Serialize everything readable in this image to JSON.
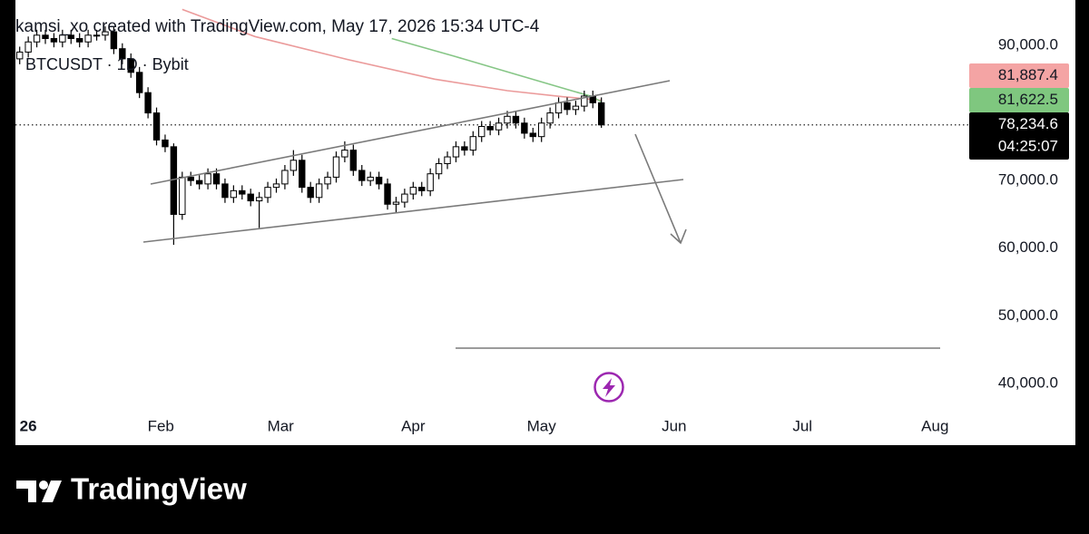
{
  "chart_data": {
    "type": "candlestick",
    "header": "kamsi_xo created with TradingView.com, May 17, 2026 15:34 UTC-4",
    "symbol": "BTCUSDT · 1D · Bybit",
    "brand": "TradingView",
    "x": [
      -2,
      0,
      2,
      4,
      6,
      8,
      10,
      12,
      14,
      16,
      18,
      20,
      22,
      24,
      26,
      28,
      30,
      32,
      34,
      36,
      38,
      40,
      42,
      44,
      46,
      48,
      50,
      52,
      54,
      56,
      58,
      60,
      62,
      64,
      66,
      68,
      70,
      72,
      74,
      76,
      78,
      80,
      82,
      84,
      86,
      88,
      90,
      92,
      94,
      96,
      98,
      100,
      102,
      104,
      106,
      108,
      110,
      112,
      114,
      116,
      118,
      120,
      122,
      124,
      126,
      128,
      130,
      132,
      134
    ],
    "open": [
      88000,
      89000,
      90500,
      91500,
      91000,
      90500,
      91500,
      91000,
      90500,
      91500,
      91500,
      92000,
      89500,
      88000,
      86000,
      83000,
      80000,
      76000,
      75000,
      65000,
      70500,
      70000,
      69500,
      71000,
      69500,
      67500,
      68500,
      68000,
      67000,
      67500,
      69000,
      69500,
      71500,
      73000,
      69000,
      67500,
      69500,
      70500,
      73500,
      74500,
      71500,
      70000,
      70500,
      69500,
      66500,
      66800,
      68000,
      69000,
      68500,
      71000,
      72500,
      73500,
      75000,
      74500,
      76500,
      78000,
      77500,
      78500,
      79500,
      78500,
      77000,
      76500,
      78500,
      80000,
      81500,
      80500,
      81000,
      82500,
      81500
    ],
    "high": [
      89800,
      91300,
      92300,
      92300,
      91800,
      92300,
      92300,
      91800,
      92300,
      92300,
      92800,
      92800,
      90300,
      88800,
      86800,
      83800,
      80800,
      76800,
      75500,
      71300,
      71300,
      70800,
      71800,
      71800,
      70300,
      69300,
      69300,
      68800,
      68300,
      69800,
      70300,
      72300,
      74500,
      73800,
      69800,
      70300,
      71300,
      74300,
      75800,
      75300,
      72300,
      71300,
      71300,
      70300,
      67600,
      68800,
      69800,
      69800,
      71800,
      73300,
      74300,
      75800,
      75800,
      77300,
      78800,
      78800,
      79300,
      80300,
      80300,
      79300,
      77800,
      79300,
      80800,
      82300,
      82300,
      81800,
      83300,
      83300,
      82300
    ],
    "low": [
      87200,
      88200,
      89700,
      90200,
      89700,
      89700,
      90200,
      89700,
      89700,
      90700,
      90700,
      88700,
      87200,
      85200,
      82200,
      79200,
      75200,
      74200,
      60500,
      64200,
      69200,
      68700,
      68700,
      68700,
      66700,
      66700,
      67200,
      66200,
      63000,
      66700,
      68200,
      68700,
      70700,
      68200,
      66700,
      66700,
      68700,
      69700,
      72700,
      70700,
      69200,
      69200,
      68700,
      65700,
      65300,
      66000,
      67200,
      67700,
      67700,
      70200,
      71700,
      72700,
      73700,
      73700,
      75700,
      76700,
      76700,
      77700,
      77700,
      76200,
      75700,
      75700,
      77700,
      79200,
      79700,
      79700,
      80200,
      80700,
      77800
    ],
    "close": [
      89000,
      90500,
      91500,
      91000,
      90500,
      91500,
      91000,
      90500,
      91500,
      91500,
      92000,
      89500,
      88000,
      86000,
      83000,
      80000,
      76000,
      75000,
      65000,
      70500,
      70000,
      69500,
      71000,
      69500,
      67500,
      68500,
      68000,
      67000,
      67500,
      69000,
      69500,
      71500,
      73000,
      69000,
      67500,
      69500,
      70500,
      73500,
      74500,
      71500,
      70000,
      70500,
      69500,
      66500,
      66800,
      68000,
      69000,
      68500,
      71000,
      72500,
      73500,
      75000,
      74500,
      76500,
      78000,
      77500,
      78500,
      79500,
      78500,
      77000,
      76500,
      78500,
      80000,
      81500,
      80500,
      81000,
      82500,
      81500,
      78234.6
    ],
    "moving_averages": [
      {
        "color": "#eb9b9b",
        "x": [
          36,
          53,
          74,
          95,
          112,
          125,
          134
        ],
        "values": [
          95300,
          91300,
          88000,
          85000,
          83300,
          82400,
          81887.4
        ]
      },
      {
        "color": "#86c686",
        "x": [
          85,
          99.5,
          114,
          127,
          132,
          134
        ],
        "values": [
          91000,
          88400,
          85700,
          83300,
          82400,
          81622.5
        ]
      }
    ],
    "price_labels": [
      {
        "value": 81887.4,
        "label": "81,887.4",
        "color": "#f4a4a4"
      },
      {
        "value": 81622.5,
        "label": "81,622.5",
        "color": "#7fc77f"
      },
      {
        "value": 78234.6,
        "label": "78,234.6",
        "color": "#000000"
      }
    ],
    "countdown": "04:25:07",
    "xlim": [
      -3,
      220
    ],
    "xticks": [
      {
        "value": 0,
        "label": "26"
      },
      {
        "value": 31,
        "label": "Feb"
      },
      {
        "value": 59,
        "label": "Mar"
      },
      {
        "value": 90,
        "label": "Apr"
      },
      {
        "value": 120,
        "label": "May"
      },
      {
        "value": 151,
        "label": "Jun"
      },
      {
        "value": 181,
        "label": "Jul"
      },
      {
        "value": 212,
        "label": "Aug"
      }
    ],
    "ylim": [
      35700,
      96700
    ],
    "yticks": [
      {
        "value": 40000,
        "label": "40,000.0"
      },
      {
        "value": 50000,
        "label": "50,000.0"
      },
      {
        "value": 60000,
        "label": "60,000.0"
      },
      {
        "value": 70000,
        "label": "70,000.0"
      },
      {
        "value": 90000,
        "label": "90,000.0"
      }
    ]
  }
}
